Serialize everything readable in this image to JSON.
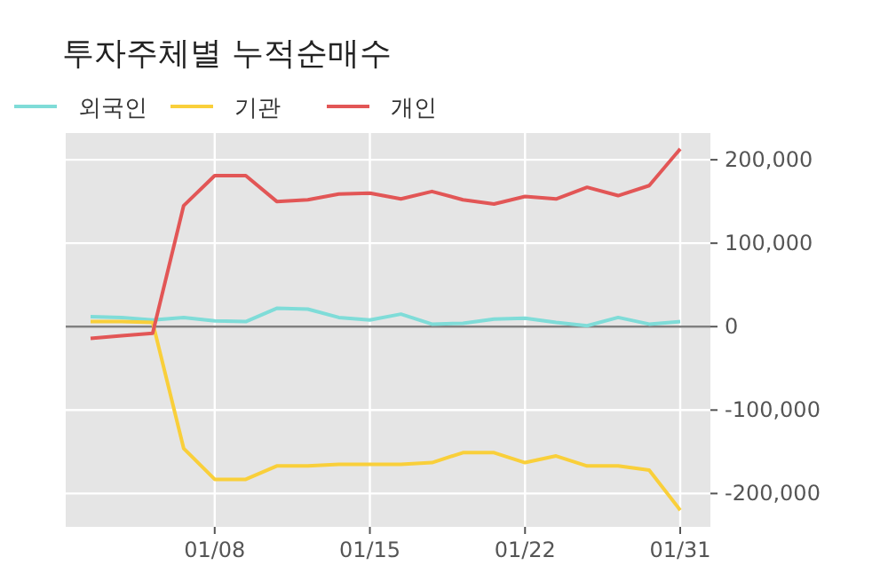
{
  "chart_data": {
    "type": "line",
    "title": "투자주체별 누적순매수",
    "categories": [
      null,
      null,
      null,
      null,
      "01/08",
      null,
      null,
      null,
      null,
      "01/15",
      null,
      null,
      null,
      null,
      "01/22",
      null,
      null,
      null,
      null,
      "01/31"
    ],
    "series": [
      {
        "name": "외국인",
        "color": "#7fdcd8",
        "values": [
          12000,
          11000,
          8000,
          11000,
          7000,
          6000,
          22000,
          21000,
          11000,
          8000,
          15000,
          3000,
          4000,
          9000,
          10000,
          5000,
          1000,
          11000,
          3000,
          6000
        ]
      },
      {
        "name": "기관",
        "color": "#f9cf3a",
        "values": [
          6000,
          6000,
          5000,
          -146000,
          -183000,
          -183000,
          -167000,
          -167000,
          -165000,
          -165000,
          -165000,
          -163000,
          -151000,
          -151000,
          -163000,
          -155000,
          -167000,
          -167000,
          -172000,
          -220000
        ]
      },
      {
        "name": "개인",
        "color": "#e25656",
        "values": [
          -14000,
          -11000,
          -8000,
          145000,
          181000,
          181000,
          150000,
          152000,
          159000,
          160000,
          153000,
          162000,
          152000,
          147000,
          156000,
          153000,
          167000,
          157000,
          169000,
          213000
        ]
      }
    ],
    "ylim": [
      -240000,
      232000
    ],
    "yticks": [
      {
        "value": -200000,
        "label": "-200,000"
      },
      {
        "value": -100000,
        "label": "-100,000"
      },
      0,
      {
        "value": 100000,
        "label": "100,000"
      },
      {
        "value": 200000,
        "label": "200,000"
      }
    ],
    "ref_lines": [
      {
        "axis": "y",
        "value": 0,
        "color": "#808080"
      }
    ],
    "grid": true,
    "legend": "top left",
    "line_style": "solid",
    "marker": "none"
  }
}
